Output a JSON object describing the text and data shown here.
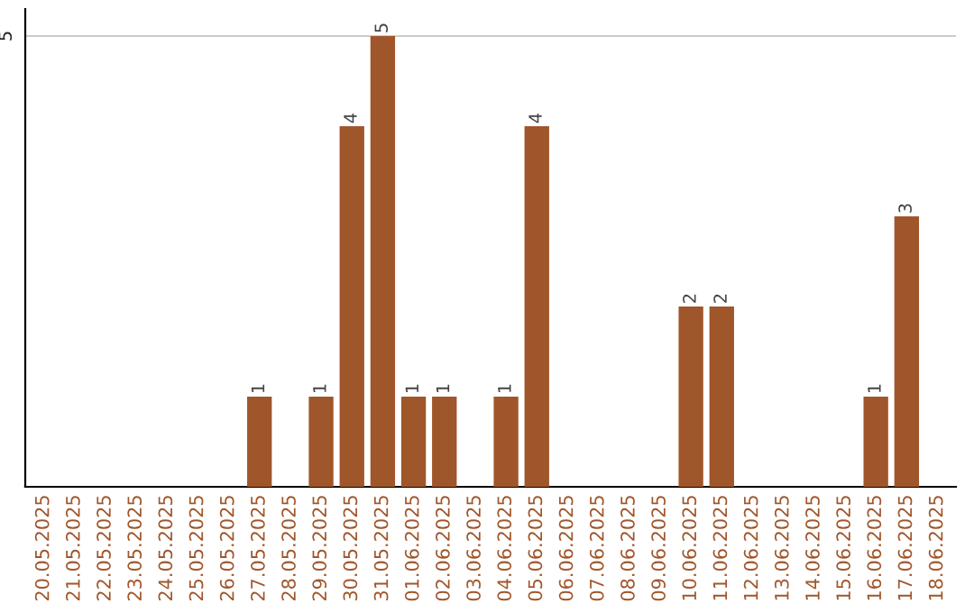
{
  "chart_data": {
    "type": "bar",
    "categories": [
      "20.05.2025",
      "21.05.2025",
      "22.05.2025",
      "23.05.2025",
      "24.05.2025",
      "25.05.2025",
      "26.05.2025",
      "27.05.2025",
      "28.05.2025",
      "29.05.2025",
      "30.05.2025",
      "31.05.2025",
      "01.06.2025",
      "02.06.2025",
      "03.06.2025",
      "04.06.2025",
      "05.06.2025",
      "06.06.2025",
      "07.06.2025",
      "08.06.2025",
      "09.06.2025",
      "10.06.2025",
      "11.06.2025",
      "12.06.2025",
      "13.06.2025",
      "14.06.2025",
      "15.06.2025",
      "16.06.2025",
      "17.06.2025",
      "18.06.2025"
    ],
    "values": [
      0,
      0,
      0,
      0,
      0,
      0,
      0,
      1,
      0,
      1,
      4,
      5,
      1,
      1,
      0,
      1,
      4,
      0,
      0,
      0,
      0,
      2,
      2,
      0,
      0,
      0,
      0,
      1,
      3,
      0
    ],
    "value_labels": [
      null,
      null,
      null,
      null,
      null,
      null,
      null,
      "1",
      null,
      "1",
      "4",
      "5",
      "1",
      "1",
      null,
      "1",
      "4",
      null,
      null,
      null,
      null,
      "2",
      "2",
      null,
      null,
      null,
      null,
      "1",
      "3",
      null
    ],
    "color": "#a0562b",
    "ylim": [
      0,
      5.3
    ],
    "yticks": [
      5
    ],
    "grid": "y",
    "legend": false
  }
}
